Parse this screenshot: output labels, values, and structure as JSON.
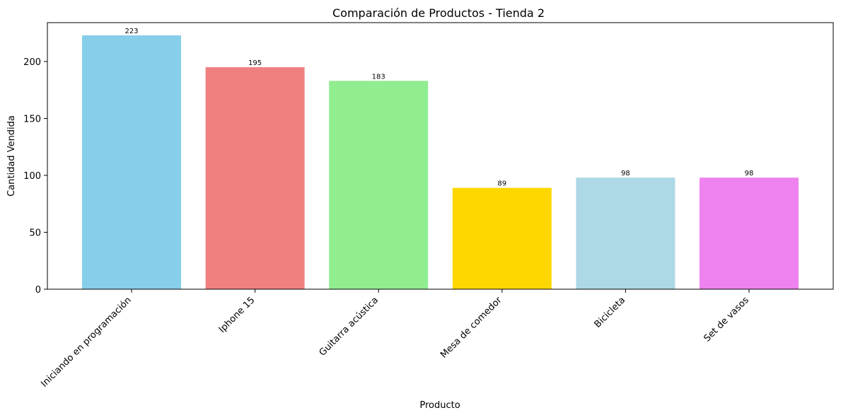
{
  "chart_data": {
    "type": "bar",
    "title": "Comparación de Productos - Tienda 2",
    "xlabel": "Producto",
    "ylabel": "Cantidad Vendida",
    "categories": [
      "Iniciando en programación",
      "Iphone 15",
      "Guitarra acústica",
      "Mesa de comedor",
      "Bicicleta",
      "Set de vasos"
    ],
    "values": [
      223,
      195,
      183,
      89,
      98,
      98
    ],
    "colors": [
      "#87CEEB",
      "#F08080",
      "#90EE90",
      "#FFD700",
      "#ADD8E6",
      "#EE82EE"
    ],
    "ylim": [
      0,
      234.15
    ],
    "yticks": [
      0,
      50,
      100,
      150,
      200
    ],
    "grid": false,
    "data_labels": true
  }
}
